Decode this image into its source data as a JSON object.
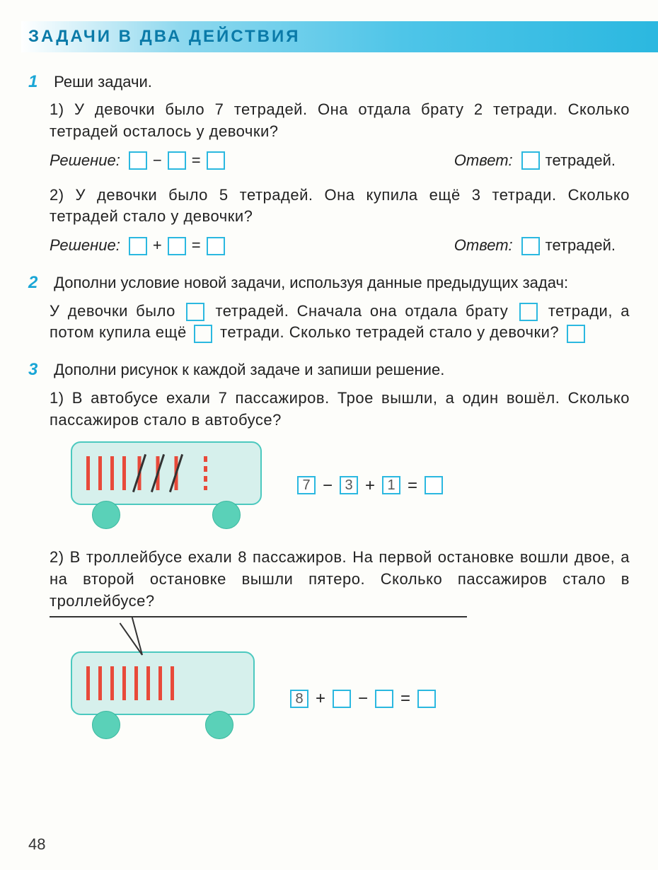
{
  "header": "ЗАДАЧИ  В  ДВА  ДЕЙСТВИЯ",
  "page_number": "48",
  "colors": {
    "accent": "#2bb8e0",
    "header_text": "#0a7aa8",
    "tally": "#e84a3a",
    "bus_fill": "#d6f0ec",
    "bus_border": "#4cc9bf",
    "wheel": "#5ad1b8"
  },
  "task1": {
    "num": "1",
    "intro": "Реши  задачи.",
    "p1_text": "1)  У  девочки  было  7  тетрадей.  Она  отдала  брату  2  тетради.  Сколько  тетрадей  осталось  у  девочки?",
    "solution_label": "Решение:",
    "op_minus": "−",
    "op_eq": "=",
    "answer_label": "Ответ:",
    "answer_unit": "тетрадей.",
    "p2_text": "2)  У  девочки   было  5   тетрадей.  Она  купила  ещё  3  тетради.  Сколько  тетрадей  стало  у  девочки?",
    "op_plus": "+"
  },
  "task2": {
    "num": "2",
    "intro": "Дополни  условие  новой  задачи,  используя  данные  предыдущих  задач:",
    "line1a": "У  девочки  было",
    "line1b": "тетрадей.  Сначала  она  отдала  брату",
    "line2a": "тетради,   а   потом   купила   ещё",
    "line2b": "тетради.   Сколько тетрадей  стало  у  девочки?"
  },
  "task3": {
    "num": "3",
    "intro": "Дополни  рисунок  к  каждой  задаче  и  запиши  решение.",
    "p1_text": "1)  В  автобусе  ехали  7  пассажиров.  Трое  вышли,  а  один вошёл.  Сколько  пассажиров  стало  в  автобусе?",
    "eq1": {
      "a": "7",
      "op1": "−",
      "b": "3",
      "op2": "+",
      "c": "1",
      "eq": "=",
      "d": ""
    },
    "bus1": {
      "solid": 4,
      "crossed": 3,
      "dashed": 1
    },
    "p2_text": "2)  В  троллейбусе  ехали  8  пассажиров.  На  первой  остановке  вошли  двое,  а  на  второй  остановке  вышли  пятеро. Сколько  пассажиров  стало  в  троллейбусе?",
    "eq2": {
      "a": "8",
      "op1": "+",
      "b": "",
      "op2": "−",
      "c": "",
      "eq": "=",
      "d": ""
    },
    "bus2": {
      "solid": 8
    }
  }
}
